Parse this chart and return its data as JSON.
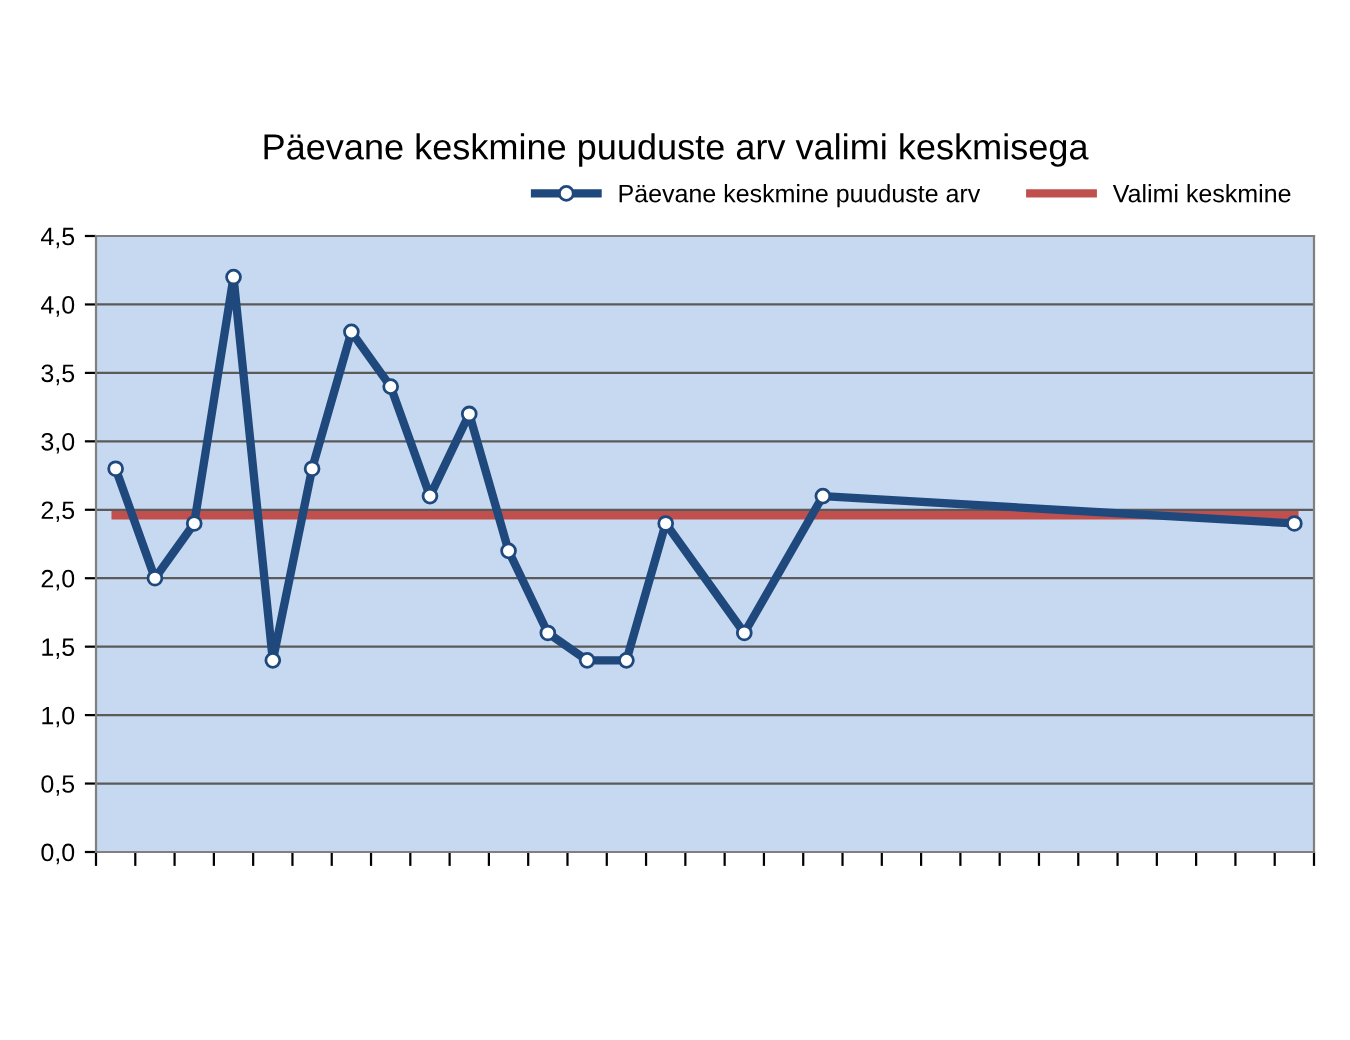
{
  "chart_data": {
    "type": "line",
    "title": "Päevane keskmine puuduste arv valimi keskmisega",
    "categories": [
      null,
      null,
      null,
      null,
      null,
      null,
      null,
      null,
      null,
      null,
      null,
      null,
      null,
      null,
      null,
      null,
      null,
      null,
      null,
      null,
      null,
      null,
      null,
      null,
      null,
      null,
      null,
      null,
      null,
      null,
      null
    ],
    "series": [
      {
        "name": "Päevane keskmine puuduste arv",
        "color": "#1f497d",
        "marker": "circle",
        "values": [
          2.8,
          2.0,
          2.4,
          4.2,
          1.4,
          2.8,
          3.8,
          3.4,
          2.6,
          3.2,
          2.2,
          1.6,
          1.4,
          1.4,
          2.4,
          null,
          1.6,
          null,
          2.6,
          null,
          null,
          null,
          null,
          null,
          null,
          null,
          null,
          null,
          null,
          null,
          2.4
        ]
      },
      {
        "name": "Valimi keskmine",
        "color": "#c0504d",
        "marker": "none",
        "values": [
          2.46,
          2.46,
          2.46,
          2.46,
          2.46,
          2.46,
          2.46,
          2.46,
          2.46,
          2.46,
          2.46,
          2.46,
          2.46,
          2.46,
          2.46,
          2.46,
          2.46,
          2.46,
          2.46,
          2.46,
          2.46,
          2.46,
          2.46,
          2.46,
          2.46,
          2.46,
          2.46,
          2.46,
          2.46,
          2.46,
          2.46
        ]
      }
    ],
    "ylim": [
      0,
      4.5
    ],
    "yticks": [
      {
        "value": 0,
        "label": "0,0"
      },
      {
        "value": 0.5,
        "label": "0,5"
      },
      {
        "value": 1,
        "label": "1,0"
      },
      {
        "value": 1.5,
        "label": "1,5"
      },
      {
        "value": 2,
        "label": "2,0"
      },
      {
        "value": 2.5,
        "label": "2,5"
      },
      {
        "value": 3,
        "label": "3,0"
      },
      {
        "value": 3.5,
        "label": "3,5"
      },
      {
        "value": 4,
        "label": "4,0"
      },
      {
        "value": 4.5,
        "label": "4,5"
      }
    ],
    "grid": "y",
    "legend": "top right",
    "tick_labels": "y"
  }
}
